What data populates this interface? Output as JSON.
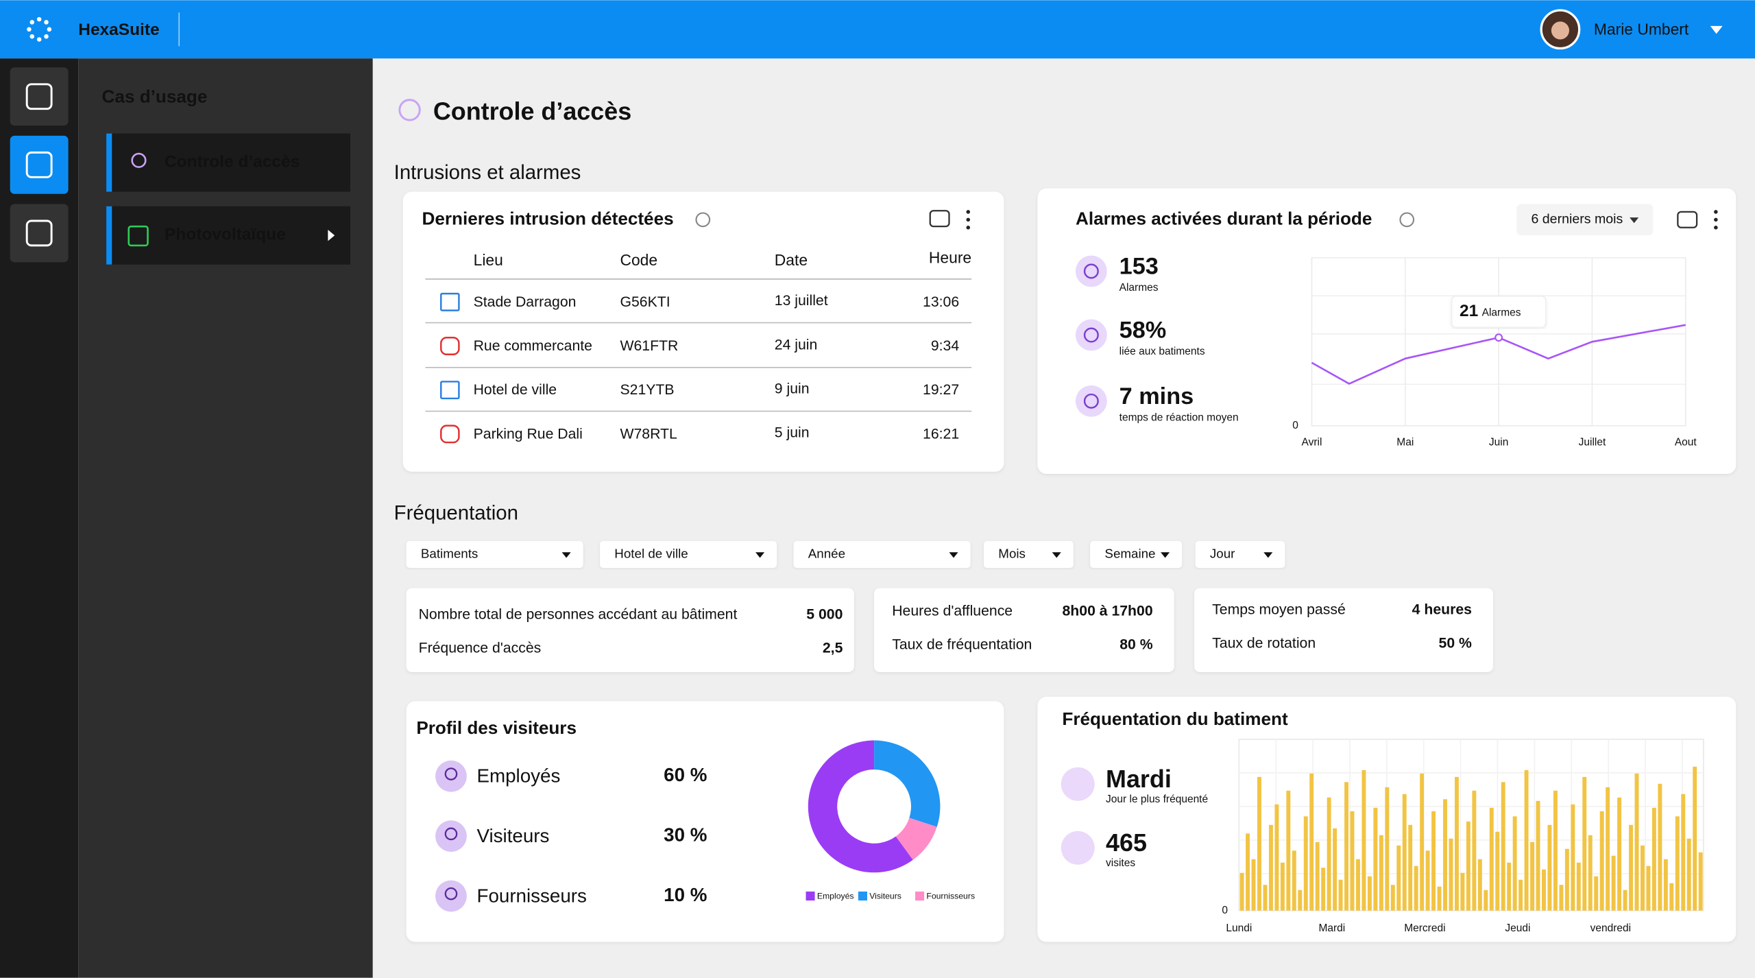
{
  "header": {
    "brand": "HexaSuite",
    "user": "Marie Umbert"
  },
  "sidebar": {
    "heading": "Cas d’usage",
    "items": [
      "Controle d’accès",
      "Photovoltaïque"
    ]
  },
  "page": {
    "title": "Controle d’accès"
  },
  "intrusions": {
    "section": "Intrusions et alarmes",
    "title": "Dernieres intrusion détectées",
    "columns": [
      "Lieu",
      "Code",
      "Date",
      "Heure"
    ],
    "rows": [
      [
        "Stade Darragon",
        "G56KTI",
        "13 juillet",
        "13:06"
      ],
      [
        "Rue commercante",
        "W61FTR",
        "24 juin",
        "9:34"
      ],
      [
        "Hotel de ville",
        "S21YTB",
        "9 juin",
        "19:27"
      ],
      [
        "Parking Rue Dali",
        "W78RTL",
        "5 juin",
        "16:21"
      ]
    ]
  },
  "alarms": {
    "period": "6 derniers mois",
    "stats": [
      {
        "value": "153",
        "label": "Alarmes"
      },
      {
        "value": "58%",
        "label": "liée aux batiments"
      },
      {
        "value": "7 mins",
        "label": "temps de réaction moyen"
      }
    ]
  },
  "frequentation": {
    "section": "Fréquentation",
    "filters": [
      "Batiments",
      "Hotel de ville",
      "Année",
      "Mois",
      "Semaine",
      "Jour"
    ],
    "kpis": [
      [
        {
          "label": "Nombre total de personnes accédant au bâtiment",
          "value": "5 000"
        },
        {
          "label": "Fréquence d'accès",
          "value": "2,5"
        }
      ],
      [
        {
          "label": "Heures d'affluence",
          "value": "8h00 à 17h00"
        },
        {
          "label": "Taux de fréquentation",
          "value": "80 %"
        }
      ],
      [
        {
          "label": "Temps moyen passé",
          "value": "4 heures"
        },
        {
          "label": "Taux de rotation",
          "value": "50 %"
        }
      ]
    ]
  },
  "building": {
    "stats": [
      {
        "value": "Mardi",
        "label": "Jour le plus fréquenté"
      },
      {
        "value": "465",
        "label": "visites"
      }
    ]
  },
  "chart_data": [
    {
      "type": "line",
      "title": "Alarmes activées durant la période",
      "x": [
        0,
        0.4,
        1,
        2,
        2.53,
        3,
        4
      ],
      "values": [
        15,
        10,
        16,
        21,
        16,
        20,
        24
      ],
      "color": "#a855f7",
      "xlim": [
        0,
        4
      ],
      "xticks": [
        {
          "value": 0,
          "label": "Avril"
        },
        {
          "value": 1,
          "label": "Mai"
        },
        {
          "value": 2,
          "label": "Juin"
        },
        {
          "value": 3,
          "label": "Juillet"
        },
        {
          "value": 4,
          "label": "Aout"
        }
      ],
      "ylim": [
        0,
        40
      ],
      "yticks": [
        0
      ],
      "grid": true,
      "annotation": {
        "x": 2,
        "text": "Alarmes"
      }
    },
    {
      "type": "pie",
      "title": "Profil des visiteurs",
      "categories": [
        "Employés",
        "Visiteurs",
        "Fournisseurs"
      ],
      "values": [
        60,
        30,
        10
      ],
      "value_labels": [
        "60 %",
        "30 %",
        "10 %"
      ],
      "colors": [
        "#9b3cf5",
        "#2196f3",
        "#ff8cc6"
      ]
    },
    {
      "type": "bar",
      "title": "Fréquentation du batiment",
      "color": "#f2c444",
      "ylim": [
        0,
        100
      ],
      "yticks": [
        0
      ],
      "grid": true,
      "categories": [
        "Lundi",
        null,
        null,
        null,
        null,
        null,
        null,
        null,
        null,
        null,
        null,
        null,
        null,
        null,
        null,
        null,
        "Mardi",
        null,
        null,
        null,
        null,
        null,
        null,
        null,
        null,
        null,
        null,
        null,
        null,
        null,
        null,
        null,
        "Mercredi",
        null,
        null,
        null,
        null,
        null,
        null,
        null,
        null,
        null,
        null,
        null,
        null,
        null,
        null,
        null,
        "Jeudi",
        null,
        null,
        null,
        null,
        null,
        null,
        null,
        null,
        null,
        null,
        null,
        null,
        null,
        null,
        null,
        "vendredi",
        null,
        null,
        null,
        null,
        null,
        null,
        null,
        null,
        null,
        null,
        null,
        null,
        null,
        null,
        null
      ],
      "values": [
        22,
        45,
        30,
        78,
        15,
        50,
        62,
        28,
        70,
        35,
        12,
        55,
        80,
        40,
        25,
        66,
        48,
        18,
        75,
        58,
        30,
        82,
        20,
        60,
        44,
        72,
        15,
        38,
        68,
        50,
        26,
        80,
        35,
        58,
        14,
        65,
        42,
        78,
        22,
        52,
        70,
        30,
        12,
        60,
        46,
        75,
        28,
        55,
        18,
        82,
        40,
        64,
        24,
        50,
        70,
        15,
        36,
        62,
        28,
        78,
        44,
        20,
        58,
        72,
        32,
        66,
        12,
        50,
        80,
        38,
        26,
        60,
        74,
        30,
        16,
        55,
        68,
        42,
        84,
        34
      ]
    }
  ]
}
